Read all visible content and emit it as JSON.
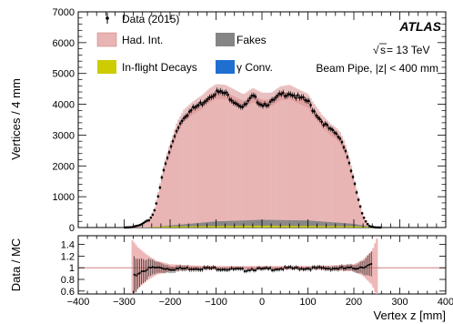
{
  "chart_data": [
    {
      "type": "histogram",
      "panel": "main",
      "xlabel": "",
      "ylabel": "Vertices / 4 mm",
      "xlim": [
        -400,
        400
      ],
      "ylim": [
        0,
        7000
      ],
      "x_ticks": [
        "−400",
        "−300",
        "−200",
        "−100",
        "0",
        "100",
        "200",
        "300",
        "400"
      ],
      "y_ticks": [
        "0",
        "1000",
        "2000",
        "3000",
        "4000",
        "5000",
        "6000",
        "7000"
      ],
      "y_tick_values": [
        0,
        1000,
        2000,
        3000,
        4000,
        5000,
        6000,
        7000
      ],
      "bin_width": 4,
      "legend": {
        "placement": "top-left",
        "entries": [
          {
            "key": "data",
            "label": "Data (2015)",
            "marker": "point"
          },
          {
            "key": "had",
            "label": "Had. Int.",
            "marker": "box",
            "color": "#e8b4b4"
          },
          {
            "key": "fakes",
            "label": "Fakes",
            "marker": "box",
            "color": "#858585"
          },
          {
            "key": "inflight",
            "label": "In-flight Decays",
            "marker": "box",
            "color": "#cccc00"
          },
          {
            "key": "gamma",
            "label": "γ Conv.",
            "marker": "box",
            "color": "#1f6fd1"
          }
        ]
      },
      "annotations": {
        "experiment": "ATLAS",
        "energy_sqrt": "s",
        "energy_rest": " = 13 TeV",
        "selection": "Beam Pipe, |z| < 400 mm"
      },
      "profile_knots": {
        "x": [
          -300,
          -280,
          -265,
          -245,
          -235,
          -225,
          -215,
          -205,
          -195,
          -185,
          -170,
          -150,
          -130,
          -115,
          -100,
          -80,
          -60,
          -40,
          -20,
          0,
          20,
          40,
          60,
          80,
          100,
          110,
          120,
          130,
          140,
          150,
          160,
          170,
          180,
          190,
          200,
          210,
          215,
          220,
          228,
          235,
          245,
          260,
          280,
          300
        ],
        "data": [
          0,
          20,
          80,
          250,
          500,
          1100,
          1800,
          2300,
          2750,
          3200,
          3600,
          3850,
          4050,
          4250,
          4400,
          4350,
          4100,
          3900,
          4250,
          4000,
          4050,
          4300,
          4380,
          4200,
          4100,
          3850,
          3650,
          3450,
          3300,
          3150,
          3050,
          2900,
          2600,
          2100,
          1500,
          900,
          600,
          350,
          150,
          40,
          8,
          0,
          0,
          0
        ],
        "had_int_mc": [
          0,
          20,
          85,
          260,
          520,
          1120,
          1820,
          2330,
          2780,
          3230,
          3620,
          3880,
          4080,
          4280,
          4420,
          4400,
          4250,
          4100,
          4300,
          4150,
          4150,
          4350,
          4400,
          4250,
          4120,
          3880,
          3680,
          3470,
          3320,
          3170,
          3070,
          2920,
          2620,
          2120,
          1520,
          920,
          620,
          360,
          155,
          42,
          8,
          0,
          0,
          0
        ]
      },
      "fakes_profile": {
        "x": [
          -400,
          -250,
          -220,
          -100,
          0,
          100,
          200,
          230,
          260,
          400
        ],
        "y": [
          0,
          0,
          40,
          200,
          250,
          230,
          120,
          40,
          0,
          0
        ]
      },
      "inflight_profile": {
        "x": [
          -400,
          -250,
          -220,
          0,
          200,
          230,
          260,
          400
        ],
        "y": [
          0,
          0,
          30,
          60,
          40,
          20,
          0,
          0
        ]
      }
    },
    {
      "type": "ratio",
      "panel": "ratio",
      "xlabel": "Vertex z [mm]",
      "ylabel": "Data / MC",
      "xlim": [
        -400,
        400
      ],
      "ylim": [
        0.55,
        1.55
      ],
      "reference_line": 1.0,
      "x_ticks": [
        "−400",
        "−300",
        "−200",
        "−100",
        "0",
        "100",
        "200",
        "300",
        "400"
      ],
      "y_ticks": [
        "0.6",
        "0.8",
        "1",
        "1.2",
        "1.4"
      ],
      "y_tick_values": [
        0.6,
        0.8,
        1.0,
        1.2,
        1.4
      ],
      "profile_knots": {
        "x": [
          -280,
          -260,
          -240,
          -220,
          -200,
          -150,
          -100,
          -60,
          -40,
          -20,
          0,
          20,
          60,
          100,
          150,
          200,
          220,
          240
        ],
        "y": [
          0.85,
          0.95,
          1.0,
          1.0,
          0.98,
          0.99,
          0.99,
          0.97,
          0.96,
          0.98,
          0.97,
          0.98,
          0.99,
          0.99,
          0.99,
          0.99,
          1.02,
          1.05
        ]
      },
      "uncertainty_knots": {
        "x": [
          -285,
          -270,
          -250,
          -230,
          -200,
          -150,
          -100,
          -50,
          0,
          50,
          100,
          150,
          200,
          220,
          240,
          250
        ],
        "half_width": [
          0.5,
          0.35,
          0.22,
          0.12,
          0.06,
          0.04,
          0.03,
          0.03,
          0.03,
          0.03,
          0.03,
          0.04,
          0.06,
          0.14,
          0.3,
          0.5
        ]
      }
    }
  ]
}
